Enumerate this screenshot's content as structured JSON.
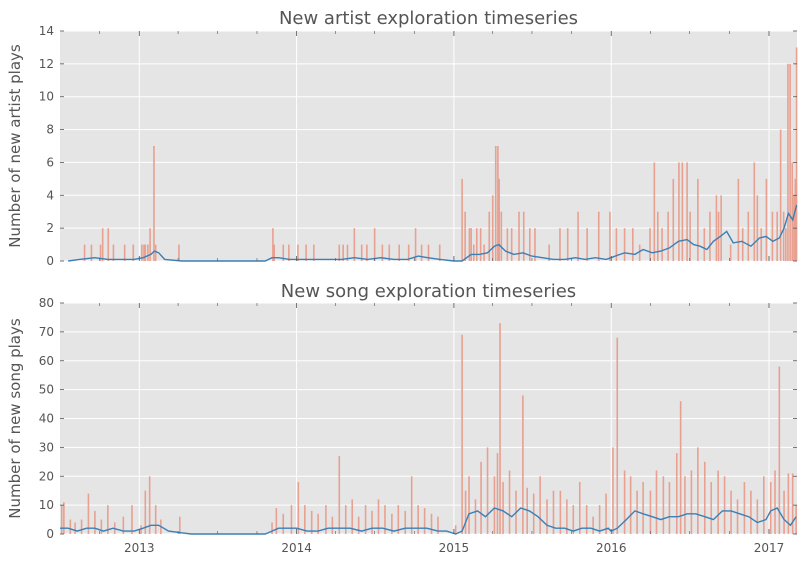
{
  "chart_data": [
    {
      "type": "bar",
      "overlay": "line",
      "title": "New artist exploration timeseries",
      "xlabel": "",
      "ylabel": "Number of new artist plays",
      "ylim": [
        0,
        14
      ],
      "yticks": [
        "0",
        "2",
        "4",
        "6",
        "8",
        "10",
        "12",
        "14"
      ],
      "xticks": [
        "2013",
        "2014",
        "2015",
        "2016",
        "2017"
      ],
      "xlim": [
        "2012-07-01",
        "2017-03-07"
      ],
      "grid": true,
      "colors": {
        "bars": "#E8A090",
        "line": "#3B7FB6",
        "background": "#E5E5E5"
      },
      "series": [
        {
          "type": "bar",
          "x": [
            "2012-08-27",
            "2012-09-12",
            "2012-10-03",
            "2012-10-08",
            "2012-10-21",
            "2012-11-02",
            "2012-11-28",
            "2012-12-18",
            "2013-01-07",
            "2013-01-12",
            "2013-01-15",
            "2013-01-21",
            "2013-01-26",
            "2013-02-04",
            "2013-02-08",
            "2013-04-03",
            "2013-11-07",
            "2013-11-10",
            "2013-12-01",
            "2013-12-14",
            "2014-01-04",
            "2014-01-23",
            "2014-02-10",
            "2014-04-10",
            "2014-04-19",
            "2014-04-29",
            "2014-05-15",
            "2014-06-01",
            "2014-06-13",
            "2014-07-01",
            "2014-07-19",
            "2014-08-04",
            "2014-08-27",
            "2014-09-18",
            "2014-10-04",
            "2014-10-18",
            "2014-11-03",
            "2014-11-29",
            "2015-01-20",
            "2015-01-27",
            "2015-02-06",
            "2015-02-10",
            "2015-02-16",
            "2015-02-23",
            "2015-03-04",
            "2015-03-12",
            "2015-03-24",
            "2015-04-01",
            "2015-04-08",
            "2015-04-13",
            "2015-04-16",
            "2015-04-21",
            "2015-05-05",
            "2015-05-15",
            "2015-06-01",
            "2015-06-12",
            "2015-06-26",
            "2015-07-08",
            "2015-08-10",
            "2015-09-04",
            "2015-09-22",
            "2015-10-16",
            "2015-11-06",
            "2015-12-03",
            "2015-12-29",
            "2016-01-13",
            "2016-02-01",
            "2016-02-20",
            "2016-03-07",
            "2016-03-31",
            "2016-04-10",
            "2016-04-18",
            "2016-04-28",
            "2016-05-12",
            "2016-05-24",
            "2016-06-06",
            "2016-06-14",
            "2016-06-25",
            "2016-07-02",
            "2016-07-20",
            "2016-08-04",
            "2016-08-17",
            "2016-09-01",
            "2016-09-06",
            "2016-09-12",
            "2016-10-04",
            "2016-10-22",
            "2016-11-01",
            "2016-11-14",
            "2016-11-28",
            "2016-12-05",
            "2016-12-14",
            "2016-12-26",
            "2017-01-09",
            "2017-01-20",
            "2017-01-28",
            "2017-02-04",
            "2017-02-09",
            "2017-02-14",
            "2017-02-19",
            "2017-02-24",
            "2017-02-28",
            "2017-03-03",
            "2017-03-06"
          ],
          "values": [
            1,
            1,
            1,
            2,
            2,
            1,
            1,
            1,
            1,
            1,
            1,
            1,
            2,
            7,
            1,
            1,
            2,
            1,
            1,
            1,
            1,
            1,
            1,
            1,
            1,
            1,
            2,
            1,
            1,
            2,
            1,
            1,
            1,
            1,
            2,
            1,
            1,
            1,
            5,
            3,
            2,
            2,
            1,
            2,
            2,
            1,
            3,
            4,
            7,
            7,
            5,
            3,
            2,
            2,
            3,
            3,
            2,
            2,
            1,
            2,
            2,
            3,
            2,
            3,
            3,
            2,
            2,
            2,
            1,
            2,
            6,
            3,
            2,
            3,
            5,
            6,
            6,
            6,
            3,
            5,
            2,
            3,
            4,
            3,
            4,
            1,
            5,
            2,
            3,
            6,
            4,
            2,
            5,
            3,
            3,
            8,
            3,
            2,
            12,
            12,
            6,
            4,
            5,
            13
          ]
        },
        {
          "type": "line",
          "x": [
            "2012-07-20",
            "2012-08-15",
            "2012-09-20",
            "2012-10-20",
            "2012-11-20",
            "2012-12-20",
            "2013-01-10",
            "2013-01-28",
            "2013-02-05",
            "2013-02-15",
            "2013-03-01",
            "2013-04-10",
            "2013-10-20",
            "2013-11-05",
            "2013-11-20",
            "2013-12-15",
            "2014-01-15",
            "2014-02-15",
            "2014-03-15",
            "2014-04-15",
            "2014-05-15",
            "2014-06-15",
            "2014-07-15",
            "2014-08-15",
            "2014-09-15",
            "2014-10-10",
            "2014-11-01",
            "2014-11-30",
            "2015-01-01",
            "2015-01-20",
            "2015-02-10",
            "2015-03-01",
            "2015-03-20",
            "2015-04-05",
            "2015-04-15",
            "2015-05-01",
            "2015-05-20",
            "2015-06-10",
            "2015-07-01",
            "2015-07-25",
            "2015-08-20",
            "2015-09-15",
            "2015-10-10",
            "2015-11-01",
            "2015-11-25",
            "2015-12-20",
            "2016-01-01",
            "2016-01-10",
            "2016-02-01",
            "2016-02-25",
            "2016-03-15",
            "2016-04-05",
            "2016-04-25",
            "2016-05-15",
            "2016-06-05",
            "2016-06-25",
            "2016-07-10",
            "2016-07-25",
            "2016-08-10",
            "2016-08-25",
            "2016-09-10",
            "2016-09-25",
            "2016-10-10",
            "2016-10-30",
            "2016-11-20",
            "2016-12-10",
            "2016-12-25",
            "2017-01-10",
            "2017-01-25",
            "2017-02-05",
            "2017-02-15",
            "2017-02-25",
            "2017-03-06"
          ],
          "values": [
            0,
            0.1,
            0.2,
            0.1,
            0.1,
            0.1,
            0.2,
            0.4,
            0.6,
            0.5,
            0.1,
            0,
            0,
            0.2,
            0.2,
            0.1,
            0.1,
            0.1,
            0.1,
            0.1,
            0.2,
            0.1,
            0.2,
            0.1,
            0.1,
            0.3,
            0.2,
            0.1,
            0,
            0,
            0.4,
            0.4,
            0.5,
            0.9,
            1,
            0.6,
            0.4,
            0.5,
            0.3,
            0.2,
            0.1,
            0.1,
            0.2,
            0.1,
            0.2,
            0.1,
            0.2,
            0.3,
            0.5,
            0.4,
            0.7,
            0.5,
            0.6,
            0.8,
            1.2,
            1.3,
            1,
            0.9,
            0.7,
            1.2,
            1.5,
            1.8,
            1.1,
            1.2,
            0.9,
            1.4,
            1.5,
            1.2,
            1.4,
            2,
            2.9,
            2.5,
            3.4
          ]
        }
      ]
    },
    {
      "type": "bar",
      "overlay": "line",
      "title": "New song exploration timeseries",
      "xlabel": "",
      "ylabel": "Number of new song plays",
      "ylim": [
        0,
        80
      ],
      "yticks": [
        "0",
        "10",
        "20",
        "30",
        "40",
        "50",
        "60",
        "70",
        "80"
      ],
      "xticks": [
        "2013",
        "2014",
        "2015",
        "2016",
        "2017"
      ],
      "xlim": [
        "2012-07-01",
        "2017-03-07"
      ],
      "grid": true,
      "colors": {
        "bars": "#E8A090",
        "line": "#3B7FB6",
        "background": "#E5E5E5"
      },
      "series": [
        {
          "type": "bar",
          "x": [
            "2012-07-05",
            "2012-07-10",
            "2012-07-25",
            "2012-08-05",
            "2012-08-20",
            "2012-09-05",
            "2012-09-20",
            "2012-10-05",
            "2012-10-20",
            "2012-11-05",
            "2012-11-25",
            "2012-12-15",
            "2013-01-05",
            "2013-01-15",
            "2013-01-25",
            "2013-02-08",
            "2013-02-20",
            "2013-04-05",
            "2013-11-05",
            "2013-11-15",
            "2013-12-01",
            "2013-12-20",
            "2014-01-05",
            "2014-01-20",
            "2014-02-05",
            "2014-02-20",
            "2014-03-10",
            "2014-03-25",
            "2014-04-10",
            "2014-04-25",
            "2014-05-10",
            "2014-05-25",
            "2014-06-10",
            "2014-06-25",
            "2014-07-10",
            "2014-07-25",
            "2014-08-10",
            "2014-08-25",
            "2014-09-10",
            "2014-09-25",
            "2014-10-10",
            "2014-10-25",
            "2014-11-10",
            "2014-11-25",
            "2015-01-05",
            "2015-01-20",
            "2015-01-28",
            "2015-02-05",
            "2015-02-20",
            "2015-03-05",
            "2015-03-20",
            "2015-04-05",
            "2015-04-12",
            "2015-04-18",
            "2015-04-25",
            "2015-05-10",
            "2015-05-25",
            "2015-06-10",
            "2015-06-20",
            "2015-07-05",
            "2015-07-20",
            "2015-08-05",
            "2015-08-20",
            "2015-09-05",
            "2015-09-20",
            "2015-10-05",
            "2015-10-20",
            "2015-11-05",
            "2015-11-20",
            "2015-12-05",
            "2015-12-20",
            "2016-01-05",
            "2016-01-15",
            "2016-02-01",
            "2016-02-15",
            "2016-03-01",
            "2016-03-15",
            "2016-04-01",
            "2016-04-15",
            "2016-05-01",
            "2016-05-15",
            "2016-06-01",
            "2016-06-10",
            "2016-06-20",
            "2016-07-05",
            "2016-07-20",
            "2016-08-05",
            "2016-08-20",
            "2016-09-05",
            "2016-09-20",
            "2016-10-05",
            "2016-10-20",
            "2016-11-05",
            "2016-11-20",
            "2016-12-05",
            "2016-12-20",
            "2017-01-05",
            "2017-01-15",
            "2017-01-25",
            "2017-02-05",
            "2017-02-15",
            "2017-02-25",
            "2017-03-05"
          ],
          "values": [
            10,
            11,
            5,
            4,
            5,
            14,
            8,
            5,
            10,
            4,
            6,
            10,
            3,
            15,
            20,
            10,
            5,
            6,
            4,
            9,
            7,
            10,
            18,
            10,
            8,
            7,
            10,
            6,
            27,
            10,
            12,
            6,
            10,
            8,
            12,
            10,
            7,
            10,
            8,
            20,
            10,
            9,
            7,
            6,
            3,
            69,
            15,
            20,
            12,
            25,
            30,
            20,
            28,
            73,
            18,
            22,
            15,
            48,
            16,
            14,
            20,
            12,
            15,
            15,
            12,
            10,
            18,
            10,
            6,
            10,
            14,
            30,
            68,
            22,
            20,
            15,
            18,
            15,
            22,
            20,
            18,
            28,
            46,
            20,
            22,
            30,
            25,
            18,
            22,
            20,
            15,
            12,
            18,
            15,
            12,
            20,
            18,
            22,
            58,
            15,
            21,
            21,
            10
          ]
        },
        {
          "type": "line",
          "x": [
            "2012-07-01",
            "2012-07-20",
            "2012-08-10",
            "2012-09-01",
            "2012-09-20",
            "2012-10-10",
            "2012-11-01",
            "2012-11-25",
            "2012-12-20",
            "2013-01-10",
            "2013-01-28",
            "2013-02-15",
            "2013-03-10",
            "2013-04-05",
            "2013-05-01",
            "2013-10-20",
            "2013-11-05",
            "2013-11-20",
            "2013-12-10",
            "2014-01-01",
            "2014-01-25",
            "2014-02-20",
            "2014-03-15",
            "2014-04-10",
            "2014-05-05",
            "2014-06-01",
            "2014-06-25",
            "2014-07-20",
            "2014-08-15",
            "2014-09-10",
            "2014-10-05",
            "2014-10-30",
            "2014-11-25",
            "2014-12-15",
            "2015-01-05",
            "2015-01-20",
            "2015-02-05",
            "2015-02-25",
            "2015-03-15",
            "2015-04-05",
            "2015-04-25",
            "2015-05-15",
            "2015-06-05",
            "2015-06-25",
            "2015-07-15",
            "2015-08-05",
            "2015-08-25",
            "2015-09-15",
            "2015-10-05",
            "2015-10-25",
            "2015-11-15",
            "2015-12-05",
            "2015-12-25",
            "2016-01-01",
            "2016-01-15",
            "2016-02-05",
            "2016-02-25",
            "2016-03-15",
            "2016-04-05",
            "2016-04-25",
            "2016-05-15",
            "2016-06-05",
            "2016-06-25",
            "2016-07-15",
            "2016-08-05",
            "2016-08-25",
            "2016-09-15",
            "2016-10-05",
            "2016-10-25",
            "2016-11-15",
            "2016-12-05",
            "2016-12-25",
            "2017-01-05",
            "2017-01-20",
            "2017-02-05",
            "2017-02-20",
            "2017-03-05"
          ],
          "values": [
            2,
            2,
            1,
            2,
            2,
            1,
            2,
            1,
            1,
            2,
            3,
            3,
            1,
            0.5,
            0,
            0,
            1,
            2,
            2,
            2,
            1,
            1,
            2,
            2,
            2,
            1,
            2,
            2,
            1,
            2,
            2,
            2,
            1,
            1,
            0,
            1,
            7,
            8,
            6,
            9,
            8,
            6,
            9,
            8,
            6,
            3,
            2,
            2,
            1,
            2,
            2,
            1,
            2,
            1,
            2,
            5,
            8,
            7,
            6,
            5,
            6,
            6,
            7,
            7,
            6,
            5,
            8,
            8,
            7,
            6,
            4,
            5,
            8,
            9,
            5,
            3,
            6
          ]
        }
      ]
    }
  ]
}
